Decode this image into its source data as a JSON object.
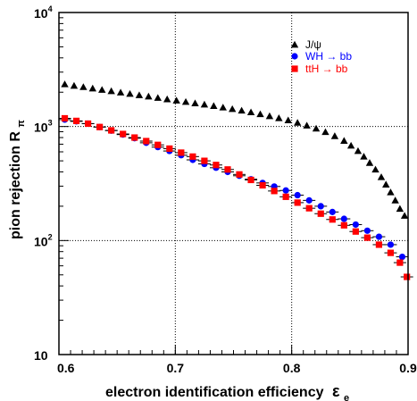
{
  "chart_data": {
    "type": "scatter",
    "xlabel": "electron identification efficiency",
    "xlabel_symbol": "ε",
    "xlabel_sub": "e",
    "ylabel": "pion rejection R",
    "ylabel_sub": "π",
    "xlim": [
      0.6,
      0.9
    ],
    "ylim": [
      10,
      10000
    ],
    "yscale": "log",
    "grid": true,
    "legend_position": "top-right",
    "x_ticks": [
      {
        "value": 0.6,
        "label": "0.6"
      },
      {
        "value": 0.7,
        "label": "0.7"
      },
      {
        "value": 0.8,
        "label": "0.8"
      },
      {
        "value": 0.9,
        "label": "0.9"
      }
    ],
    "y_ticks": [
      {
        "value": 10,
        "base": "10",
        "exp": ""
      },
      {
        "value": 100,
        "base": "10",
        "exp": "2"
      },
      {
        "value": 1000,
        "base": "10",
        "exp": "3"
      },
      {
        "value": 10000,
        "base": "10",
        "exp": "4"
      }
    ],
    "series": [
      {
        "name": "J/ψ",
        "color": "#000000",
        "marker": "triangle",
        "points": [
          [
            0.605,
            2350
          ],
          [
            0.613,
            2280
          ],
          [
            0.621,
            2220
          ],
          [
            0.629,
            2160
          ],
          [
            0.637,
            2100
          ],
          [
            0.645,
            2045
          ],
          [
            0.653,
            1990
          ],
          [
            0.661,
            1935
          ],
          [
            0.669,
            1885
          ],
          [
            0.677,
            1835
          ],
          [
            0.685,
            1785
          ],
          [
            0.693,
            1735
          ],
          [
            0.701,
            1690
          ],
          [
            0.709,
            1645
          ],
          [
            0.717,
            1600
          ],
          [
            0.725,
            1560
          ],
          [
            0.733,
            1515
          ],
          [
            0.741,
            1470
          ],
          [
            0.749,
            1425
          ],
          [
            0.757,
            1380
          ],
          [
            0.765,
            1335
          ],
          [
            0.773,
            1285
          ],
          [
            0.781,
            1235
          ],
          [
            0.789,
            1185
          ],
          [
            0.797,
            1135
          ],
          [
            0.805,
            1080
          ],
          [
            0.813,
            1020
          ],
          [
            0.821,
            960
          ],
          [
            0.829,
            895
          ],
          [
            0.837,
            825
          ],
          [
            0.845,
            750
          ],
          [
            0.851,
            680
          ],
          [
            0.857,
            610
          ],
          [
            0.862,
            545
          ],
          [
            0.867,
            480
          ],
          [
            0.872,
            420
          ],
          [
            0.877,
            360
          ],
          [
            0.881,
            310
          ],
          [
            0.885,
            265
          ],
          [
            0.889,
            225
          ],
          [
            0.893,
            190
          ],
          [
            0.897,
            165
          ]
        ]
      },
      {
        "name": "WH → bb",
        "color": "#0000ff",
        "marker": "circle",
        "points": [
          [
            0.605,
            1150
          ],
          [
            0.615,
            1110
          ],
          [
            0.625,
            1060
          ],
          [
            0.635,
            990
          ],
          [
            0.645,
            920
          ],
          [
            0.655,
            850
          ],
          [
            0.665,
            790
          ],
          [
            0.675,
            720
          ],
          [
            0.685,
            660
          ],
          [
            0.695,
            610
          ],
          [
            0.705,
            560
          ],
          [
            0.715,
            510
          ],
          [
            0.725,
            470
          ],
          [
            0.735,
            435
          ],
          [
            0.745,
            400
          ],
          [
            0.755,
            370
          ],
          [
            0.765,
            345
          ],
          [
            0.775,
            320
          ],
          [
            0.785,
            298
          ],
          [
            0.795,
            275
          ],
          [
            0.805,
            250
          ],
          [
            0.815,
            225
          ],
          [
            0.825,
            200
          ],
          [
            0.835,
            178
          ],
          [
            0.845,
            155
          ],
          [
            0.855,
            138
          ],
          [
            0.865,
            122
          ],
          [
            0.875,
            108
          ],
          [
            0.885,
            92
          ],
          [
            0.895,
            72
          ]
        ]
      },
      {
        "name": "ttH → bb",
        "color": "#ff0000",
        "marker": "square",
        "points": [
          [
            0.605,
            1180
          ],
          [
            0.615,
            1120
          ],
          [
            0.625,
            1060
          ],
          [
            0.635,
            990
          ],
          [
            0.645,
            925
          ],
          [
            0.655,
            860
          ],
          [
            0.665,
            800
          ],
          [
            0.675,
            745
          ],
          [
            0.685,
            690
          ],
          [
            0.695,
            640
          ],
          [
            0.705,
            590
          ],
          [
            0.715,
            545
          ],
          [
            0.725,
            500
          ],
          [
            0.735,
            460
          ],
          [
            0.745,
            420
          ],
          [
            0.755,
            380
          ],
          [
            0.765,
            340
          ],
          [
            0.775,
            305
          ],
          [
            0.785,
            272
          ],
          [
            0.795,
            242
          ],
          [
            0.805,
            215
          ],
          [
            0.815,
            192
          ],
          [
            0.825,
            172
          ],
          [
            0.835,
            153
          ],
          [
            0.845,
            136
          ],
          [
            0.855,
            120
          ],
          [
            0.865,
            106
          ],
          [
            0.875,
            92
          ],
          [
            0.885,
            78
          ],
          [
            0.893,
            64
          ],
          [
            0.899,
            48
          ]
        ]
      }
    ]
  }
}
